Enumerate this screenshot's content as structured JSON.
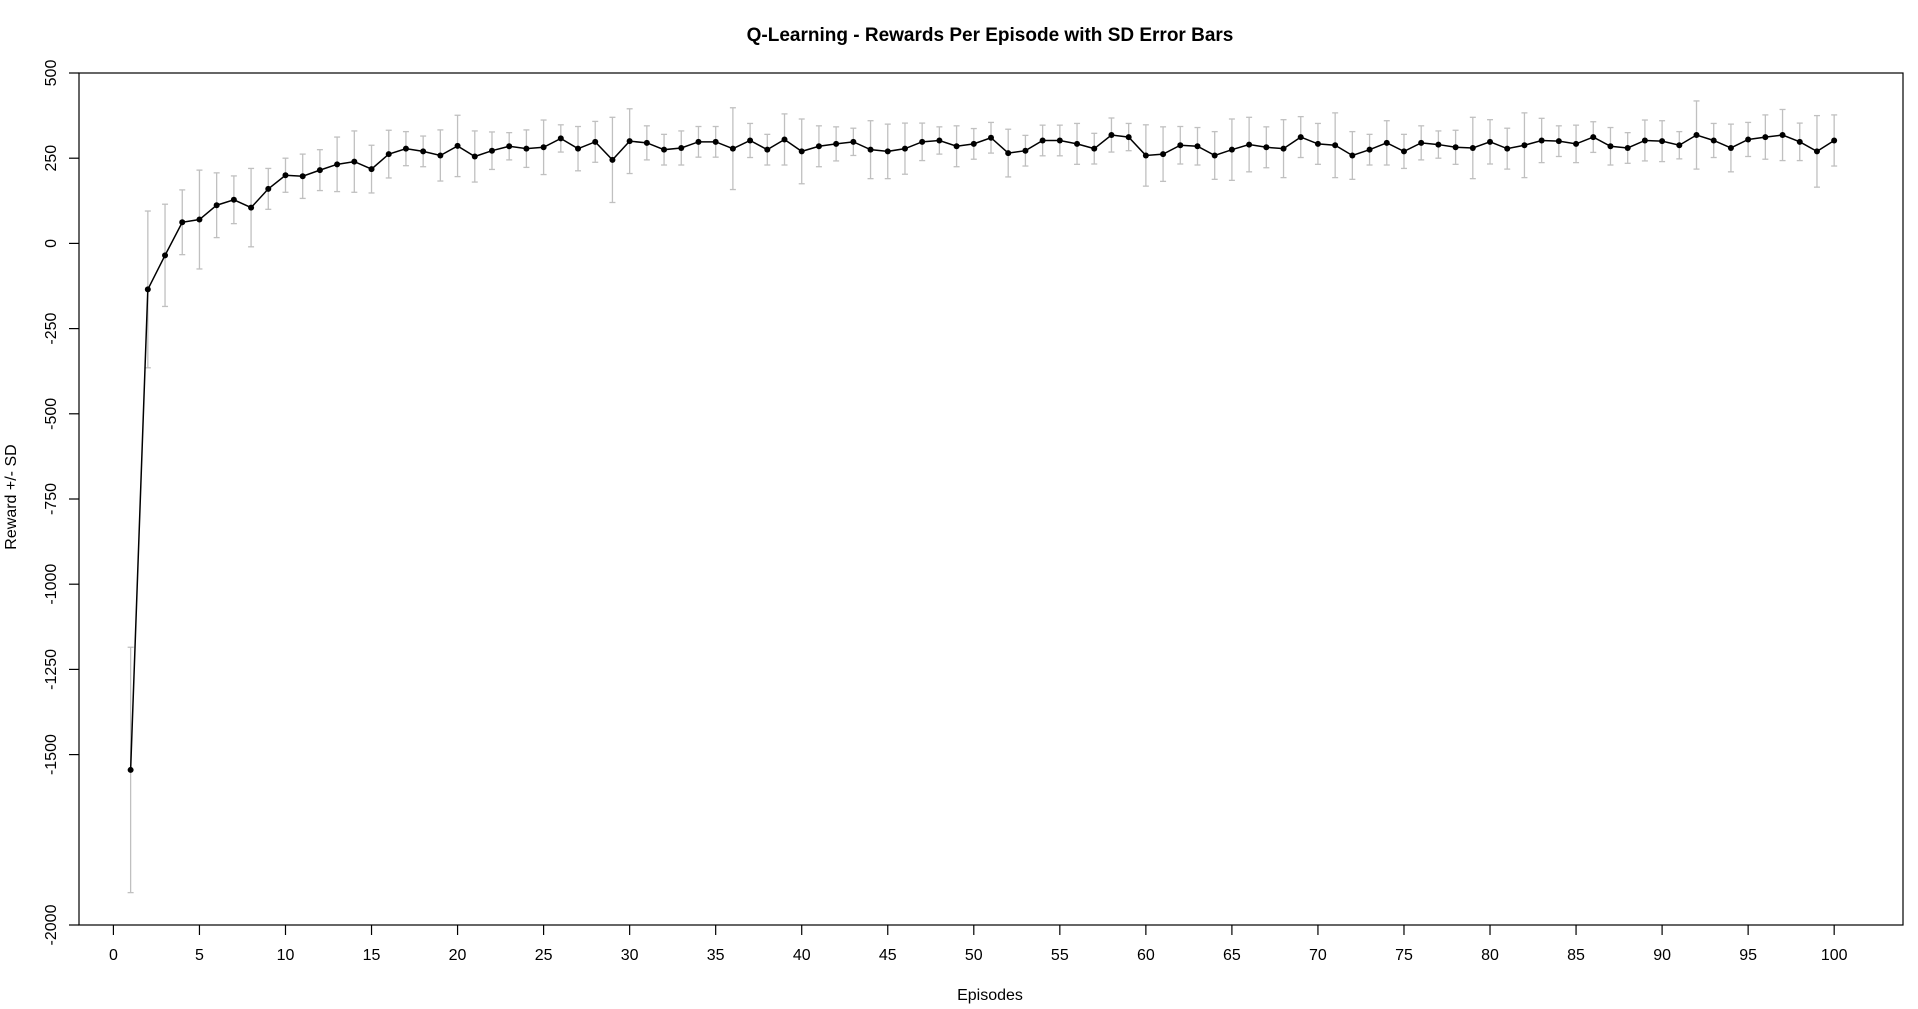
{
  "chart_data": {
    "type": "line",
    "title": "Q-Learning - Rewards Per Episode with SD Error Bars",
    "xlabel": "Episodes",
    "ylabel": "Reward +/- SD",
    "xlim": [
      -2,
      104
    ],
    "ylim": [
      -2000,
      500
    ],
    "x_ticks": [
      0,
      5,
      10,
      15,
      20,
      25,
      30,
      35,
      40,
      45,
      50,
      55,
      60,
      65,
      70,
      75,
      80,
      85,
      90,
      95,
      100
    ],
    "y_ticks": [
      -2000,
      -1500,
      -1250,
      -1000,
      -750,
      -500,
      -250,
      0,
      250,
      500
    ],
    "grid": false,
    "legend": "none",
    "line_color": "#000000",
    "error_bar_color": "#c0c0c0",
    "x": [
      1,
      2,
      3,
      4,
      5,
      6,
      7,
      8,
      9,
      10,
      11,
      12,
      13,
      14,
      15,
      16,
      17,
      18,
      19,
      20,
      21,
      22,
      23,
      24,
      25,
      26,
      27,
      28,
      29,
      30,
      31,
      32,
      33,
      34,
      35,
      36,
      37,
      38,
      39,
      40,
      41,
      42,
      43,
      44,
      45,
      46,
      47,
      48,
      49,
      50,
      51,
      52,
      53,
      54,
      55,
      56,
      57,
      58,
      59,
      60,
      61,
      62,
      63,
      64,
      65,
      66,
      67,
      68,
      69,
      70,
      71,
      72,
      73,
      74,
      75,
      76,
      77,
      78,
      79,
      80,
      81,
      82,
      83,
      84,
      85,
      86,
      87,
      88,
      89,
      90,
      91,
      92,
      93,
      94,
      95,
      96,
      97,
      98,
      99,
      100
    ],
    "y": [
      -1545,
      -135,
      -35,
      62,
      70,
      112,
      128,
      105,
      160,
      200,
      197,
      215,
      232,
      240,
      218,
      262,
      278,
      270,
      258,
      286,
      255,
      272,
      285,
      278,
      282,
      308,
      278,
      298,
      245,
      300,
      295,
      275,
      280,
      298,
      298,
      278,
      302,
      275,
      305,
      270,
      285,
      292,
      298,
      275,
      270,
      278,
      298,
      302,
      285,
      292,
      310,
      265,
      272,
      302,
      302,
      292,
      278,
      318,
      312,
      258,
      262,
      288,
      285,
      258,
      275,
      290,
      282,
      278,
      312,
      292,
      288,
      258,
      275,
      295,
      270,
      295,
      290,
      282,
      280,
      298,
      278,
      288,
      302,
      300,
      292,
      312,
      285,
      280,
      302,
      300,
      288,
      318,
      302,
      280,
      305,
      312,
      318,
      298,
      270,
      302
    ],
    "sd": [
      360,
      230,
      150,
      95,
      145,
      95,
      70,
      115,
      60,
      50,
      65,
      60,
      80,
      90,
      70,
      70,
      50,
      45,
      75,
      90,
      75,
      55,
      40,
      55,
      80,
      40,
      65,
      60,
      125,
      95,
      50,
      45,
      50,
      45,
      45,
      120,
      50,
      45,
      75,
      95,
      60,
      50,
      40,
      85,
      80,
      75,
      55,
      40,
      60,
      45,
      45,
      70,
      45,
      45,
      45,
      60,
      45,
      50,
      40,
      90,
      80,
      55,
      55,
      70,
      90,
      80,
      60,
      85,
      60,
      60,
      95,
      70,
      45,
      65,
      50,
      50,
      40,
      50,
      90,
      65,
      60,
      95,
      65,
      45,
      55,
      45,
      55,
      45,
      60,
      60,
      40,
      100,
      50,
      70,
      50,
      65,
      75,
      55,
      105,
      75
    ]
  }
}
